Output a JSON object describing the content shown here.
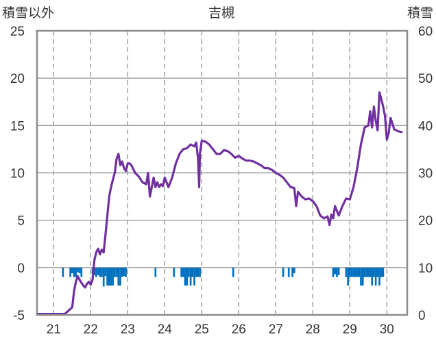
{
  "chart_data": {
    "type": "line",
    "title": "吉槻",
    "left_axis_label": "積雪以外",
    "right_axis_label": "積雪",
    "x_ticks": [
      "21",
      "22",
      "23",
      "24",
      "25",
      "26",
      "27",
      "28",
      "29",
      "30"
    ],
    "y_left_ticks": [
      "25",
      "20",
      "15",
      "10",
      "5",
      "0",
      "-5"
    ],
    "y_right_ticks": [
      "60",
      "50",
      "40",
      "30",
      "20",
      "10",
      "0"
    ],
    "x_range": [
      20.55,
      30.55
    ],
    "y_left_range": [
      -5,
      25
    ],
    "y_right_range": [
      0,
      60
    ],
    "grid": true,
    "line_color": "#7030a0",
    "bar_color": "#0070c0",
    "series": [
      {
        "kind": "line",
        "axis": "left",
        "x": [
          20.55,
          21.3,
          21.5,
          21.55,
          21.6,
          21.65,
          21.7,
          21.75,
          21.8,
          21.85,
          21.9,
          21.95,
          22.0,
          22.05,
          22.1,
          22.15,
          22.2,
          22.25,
          22.3,
          22.35,
          22.4,
          22.45,
          22.5,
          22.55,
          22.6,
          22.65,
          22.7,
          22.75,
          22.8,
          22.85,
          22.9,
          22.95,
          23.0,
          23.05,
          23.1,
          23.2,
          23.3,
          23.4,
          23.5,
          23.55,
          23.6,
          23.7,
          23.75,
          23.8,
          23.85,
          23.9,
          23.95,
          24.0,
          24.1,
          24.2,
          24.3,
          24.4,
          24.5,
          24.6,
          24.7,
          24.8,
          24.85,
          24.9,
          24.93,
          24.95,
          25.0,
          25.1,
          25.2,
          25.3,
          25.4,
          25.5,
          25.6,
          25.7,
          25.8,
          25.9,
          26.0,
          26.1,
          26.2,
          26.3,
          26.4,
          26.5,
          26.6,
          26.7,
          26.8,
          26.9,
          27.0,
          27.1,
          27.2,
          27.3,
          27.4,
          27.5,
          27.55,
          27.6,
          27.7,
          27.8,
          27.9,
          28.0,
          28.1,
          28.2,
          28.3,
          28.4,
          28.45,
          28.5,
          28.55,
          28.6,
          28.7,
          28.8,
          28.9,
          29.0,
          29.1,
          29.2,
          29.3,
          29.4,
          29.5,
          29.55,
          29.6,
          29.65,
          29.7,
          29.75,
          29.8,
          29.85,
          29.9,
          29.95,
          30.0,
          30.05,
          30.1,
          30.2,
          30.3,
          30.4
        ],
        "values": [
          -4.9,
          -4.9,
          -4.2,
          -2.5,
          -1.5,
          -0.9,
          -1.3,
          -1.6,
          -1.9,
          -2.1,
          -1.7,
          -1.5,
          -1.8,
          -1.3,
          0.8,
          1.6,
          2.0,
          1.4,
          1.9,
          1.6,
          3.5,
          5.5,
          7.5,
          8.5,
          9.3,
          10.0,
          11.5,
          12.0,
          10.8,
          11.2,
          10.5,
          10.2,
          11.0,
          11.0,
          10.8,
          10.0,
          9.6,
          9.0,
          8.8,
          10.0,
          7.5,
          9.5,
          8.5,
          9.0,
          8.5,
          8.8,
          8.6,
          9.5,
          8.5,
          9.5,
          11.0,
          12.0,
          12.5,
          12.6,
          13.0,
          12.8,
          13.2,
          11.5,
          8.5,
          12.0,
          13.4,
          13.3,
          13.0,
          12.5,
          12.0,
          12.0,
          12.4,
          12.3,
          12.0,
          11.6,
          11.8,
          11.5,
          11.3,
          11.3,
          11.2,
          11.0,
          10.8,
          10.5,
          10.5,
          10.3,
          10.0,
          9.8,
          9.5,
          9.0,
          8.5,
          8.4,
          6.5,
          8.0,
          7.5,
          7.2,
          7.3,
          7.0,
          6.5,
          5.5,
          5.2,
          5.4,
          4.5,
          5.6,
          5.2,
          6.5,
          5.5,
          6.5,
          7.3,
          7.2,
          8.5,
          10.5,
          13.0,
          14.8,
          15.0,
          16.5,
          14.8,
          17.0,
          15.5,
          14.5,
          18.5,
          17.8,
          17.0,
          16.0,
          13.5,
          14.2,
          15.8,
          14.6,
          14.4,
          14.3
        ]
      },
      {
        "kind": "bar",
        "axis": "left",
        "x": [
          21.25,
          21.45,
          21.5,
          21.55,
          21.6,
          21.65,
          21.7,
          21.75,
          22.05,
          22.1,
          22.15,
          22.2,
          22.25,
          22.3,
          22.35,
          22.4,
          22.45,
          22.5,
          22.55,
          22.6,
          22.65,
          22.7,
          22.75,
          22.8,
          22.85,
          22.9,
          22.95,
          23.75,
          24.25,
          24.45,
          24.5,
          24.55,
          24.6,
          24.65,
          24.7,
          24.75,
          24.8,
          24.85,
          24.9,
          24.95,
          25.85,
          27.2,
          27.35,
          27.45,
          27.5,
          28.55,
          28.6,
          28.65,
          28.7,
          28.9,
          28.95,
          29.0,
          29.05,
          29.1,
          29.15,
          29.2,
          29.25,
          29.3,
          29.35,
          29.4,
          29.45,
          29.5,
          29.55,
          29.6,
          29.65,
          29.7,
          29.75,
          29.8,
          29.85,
          29.9
        ],
        "values": [
          -1,
          -1,
          -0.6,
          -1,
          -1,
          -0.5,
          -0.6,
          -1,
          -0.7,
          -0.8,
          -1,
          -0.8,
          -1,
          -1,
          -2,
          -0.9,
          -1.9,
          -1.9,
          -1.9,
          -1.9,
          -1,
          -1,
          -1.9,
          -1.9,
          -1,
          -0.9,
          -1,
          -1,
          -1,
          -1,
          -1,
          -1.9,
          -1.9,
          -1,
          -1.9,
          -1,
          -1.9,
          -1,
          -1,
          -1,
          -1,
          -1,
          -1,
          -1,
          -0.6,
          -1,
          -0.7,
          -1,
          -0.8,
          -1,
          -1.9,
          -1,
          -1,
          -1,
          -1,
          -1,
          -1,
          -1.9,
          -1.9,
          -1,
          -1,
          -1,
          -1,
          -1.9,
          -1,
          -1.9,
          -1,
          -1.9,
          -1,
          -1
        ]
      }
    ]
  }
}
